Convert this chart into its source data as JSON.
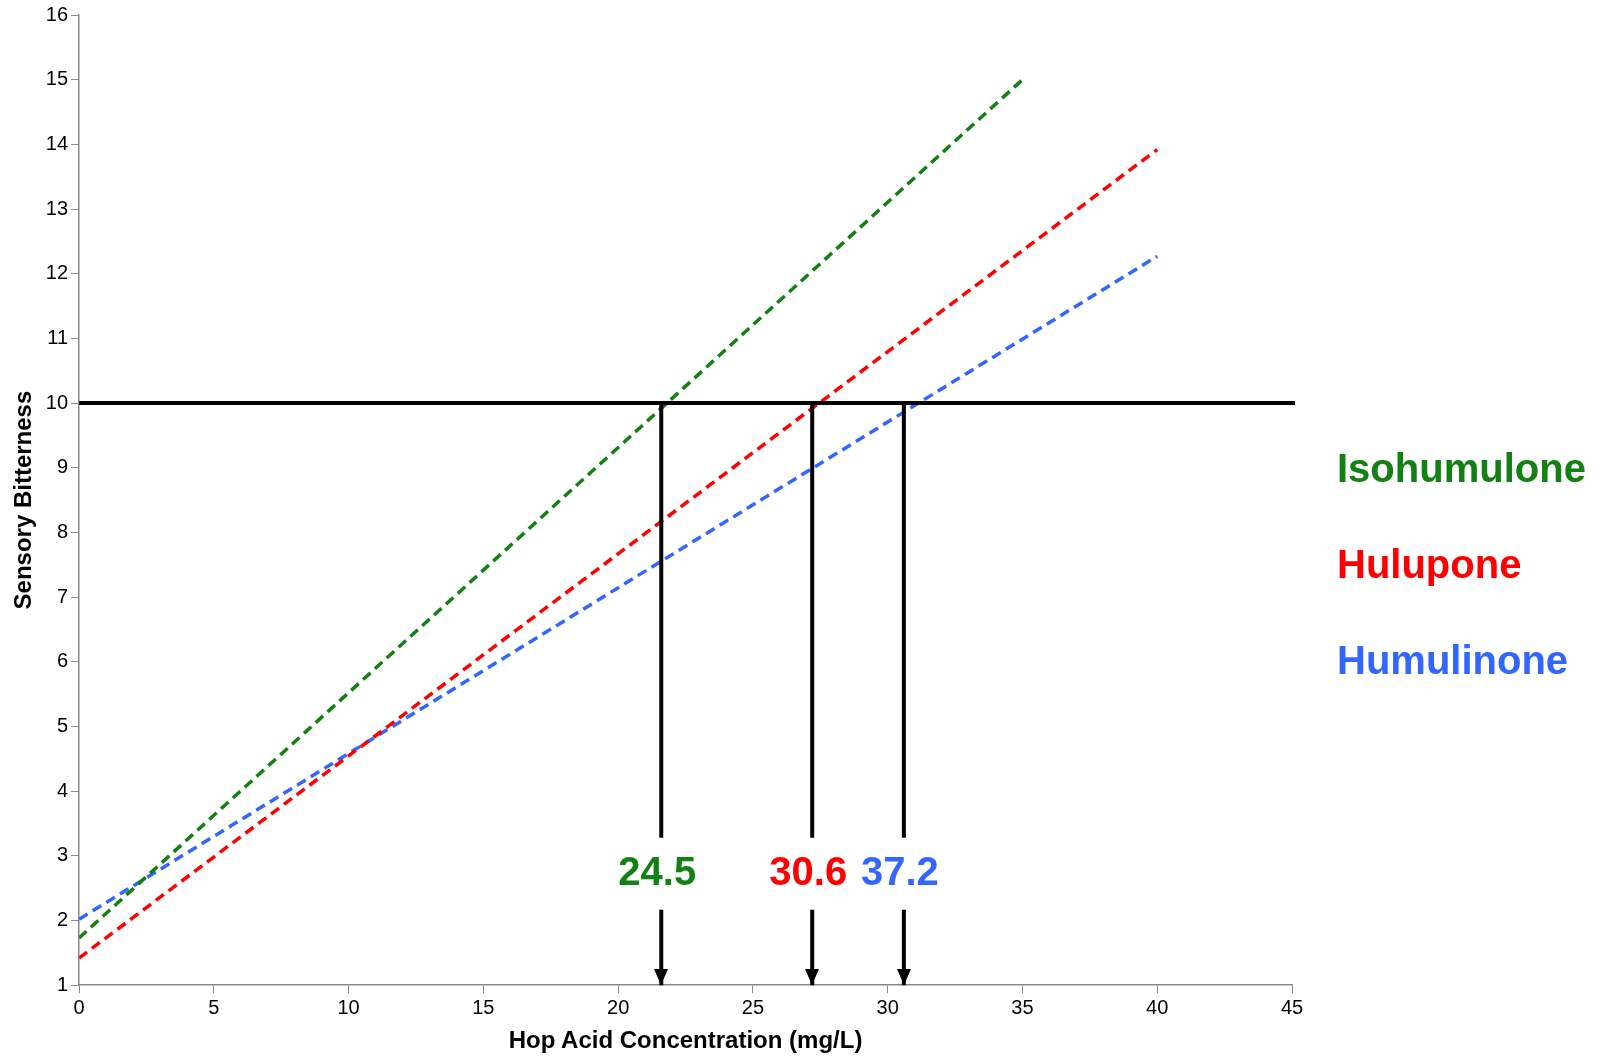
{
  "chart_data": {
    "type": "line",
    "xlabel": "Hop Acid Concentration (mg/L)",
    "ylabel": "Sensory Bitterness",
    "xlim": [
      0,
      45
    ],
    "xticks": [
      0,
      5,
      10,
      15,
      20,
      25,
      30,
      35,
      40,
      45
    ],
    "ylim": [
      1,
      16
    ],
    "yticks": [
      1,
      2,
      3,
      4,
      5,
      6,
      7,
      8,
      9,
      10,
      11,
      12,
      13,
      14,
      15,
      16
    ],
    "series": [
      {
        "name": "Isohumulone",
        "color": "#128012",
        "x": [
          0,
          35
        ],
        "values": [
          1.73,
          15.0
        ]
      },
      {
        "name": "Hulupone",
        "color": "#ff0000",
        "x": [
          0,
          40
        ],
        "values": [
          1.42,
          13.92
        ]
      },
      {
        "name": "Humulinone",
        "color": "#3366ff",
        "x": [
          0,
          40
        ],
        "values": [
          2.02,
          12.27
        ]
      }
    ],
    "ref_lines": [
      {
        "axis": "y",
        "value": 10,
        "color": "#000000"
      },
      {
        "axis": "x",
        "value": 21.6,
        "color": "#000000"
      },
      {
        "axis": "x",
        "value": 27.2,
        "color": "#000000"
      },
      {
        "axis": "x",
        "value": 30.6,
        "color": "#000000"
      }
    ],
    "annotations": [
      "24.5",
      "30.6",
      "37.2"
    ],
    "legend": "right",
    "marker": "none",
    "line_style": "dashed",
    "grid": false
  }
}
